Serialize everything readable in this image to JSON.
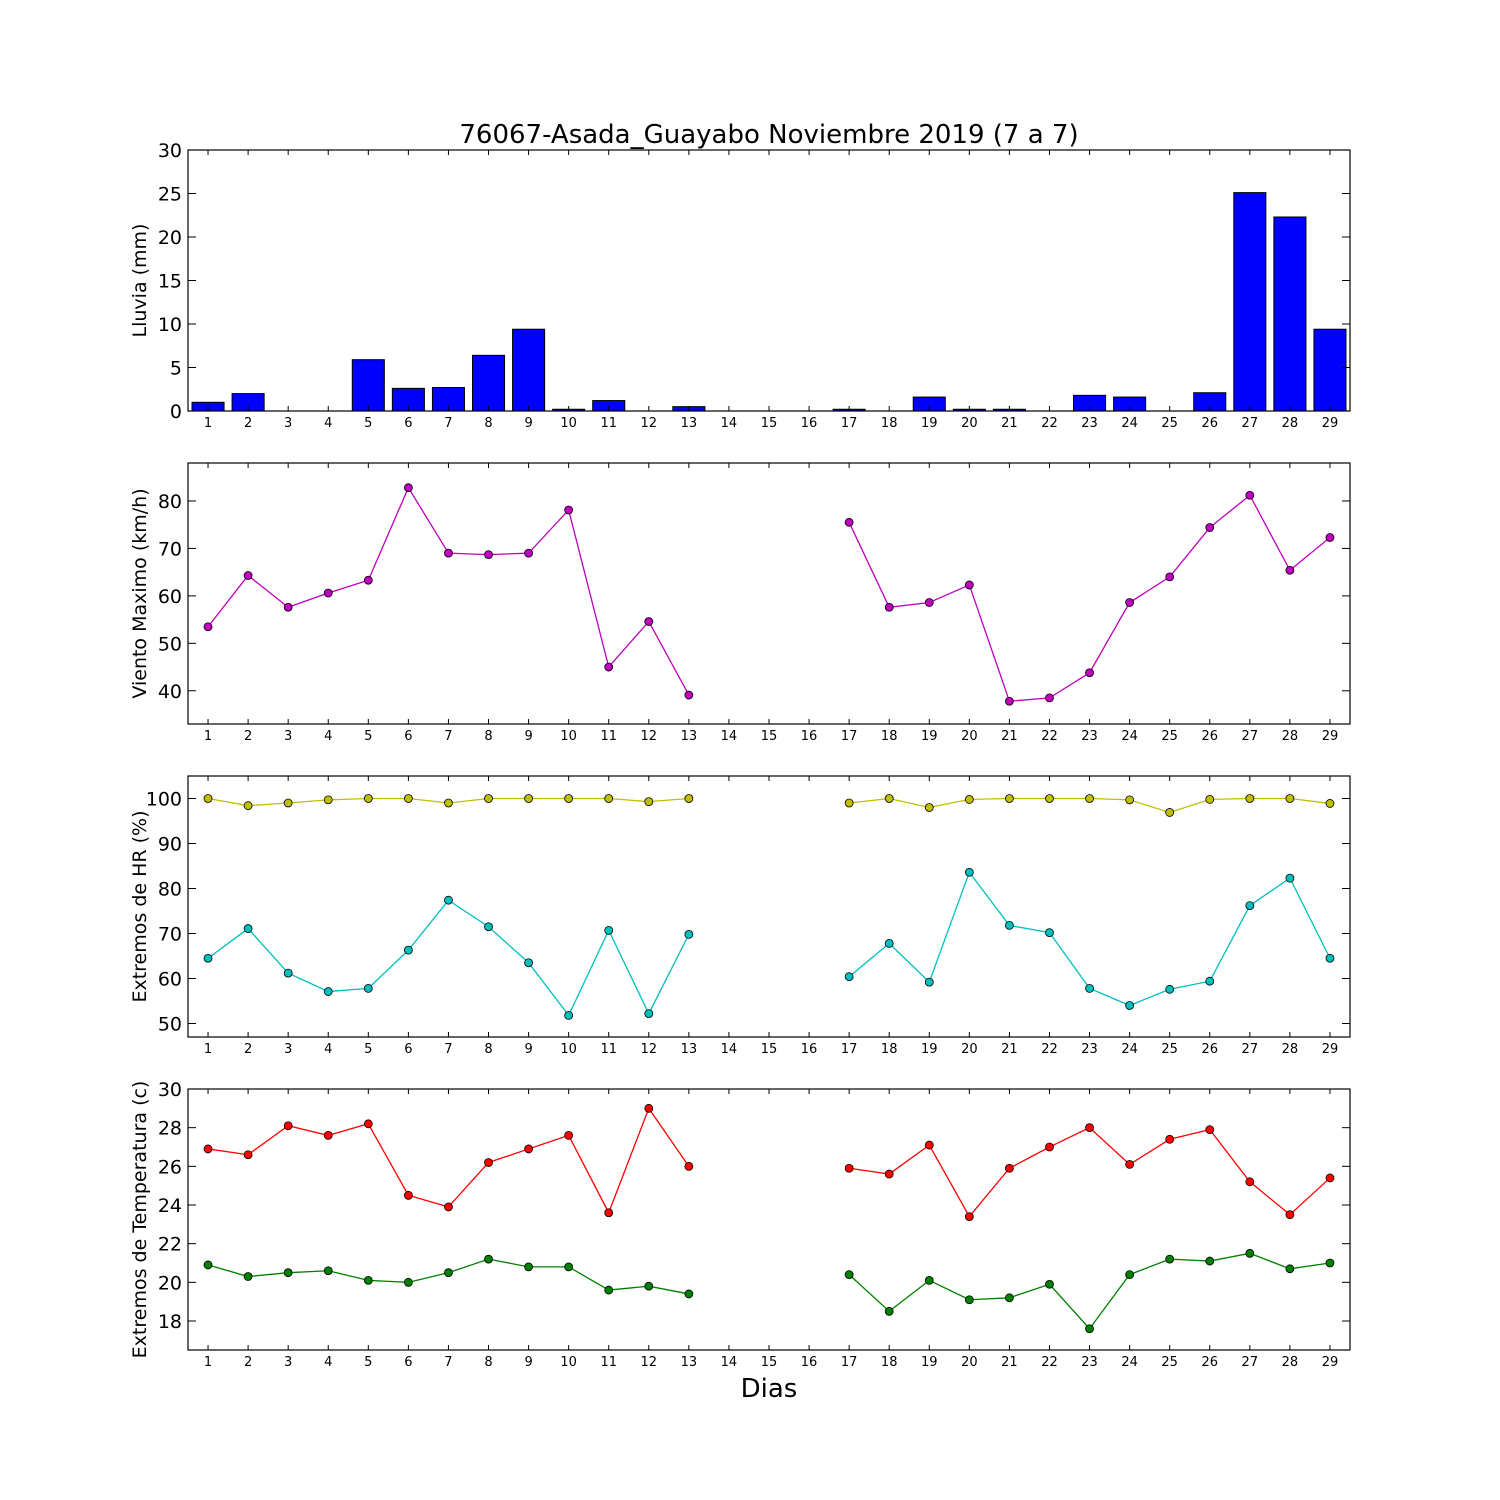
{
  "title": "76067-Asada_Guayabo Noviembre 2019  (7 a 7)",
  "xlabel": "Dias",
  "chart_data": [
    {
      "type": "bar",
      "ylabel": "Lluvia (mm)",
      "ylim": [
        0,
        30
      ],
      "yticks": [
        0,
        5,
        10,
        15,
        20,
        25,
        30
      ],
      "categories": [
        "1",
        "2",
        "3",
        "4",
        "5",
        "6",
        "7",
        "8",
        "9",
        "10",
        "11",
        "12",
        "13",
        "14",
        "15",
        "16",
        "17",
        "18",
        "19",
        "20",
        "21",
        "22",
        "23",
        "24",
        "25",
        "26",
        "27",
        "28",
        "29"
      ],
      "series": [
        {
          "color": "#0000ff",
          "values": [
            1.0,
            2.0,
            0.0,
            0.0,
            5.9,
            2.6,
            2.7,
            6.4,
            9.4,
            0.2,
            1.2,
            0.0,
            0.5,
            0.0,
            0.0,
            0.0,
            0.2,
            0.0,
            1.6,
            0.2,
            0.2,
            0.0,
            1.8,
            1.6,
            0.0,
            2.1,
            25.1,
            22.3,
            9.4
          ]
        }
      ]
    },
    {
      "type": "line",
      "ylabel": "Viento Maximo (km/h)",
      "ylim": [
        33,
        88
      ],
      "yticks": [
        40,
        50,
        60,
        70,
        80
      ],
      "categories": [
        "1",
        "2",
        "3",
        "4",
        "5",
        "6",
        "7",
        "8",
        "9",
        "10",
        "11",
        "12",
        "13",
        "14",
        "15",
        "16",
        "17",
        "18",
        "19",
        "20",
        "21",
        "22",
        "23",
        "24",
        "25",
        "26",
        "27",
        "28",
        "29"
      ],
      "series": [
        {
          "color": "#bf00bf",
          "values": [
            53.5,
            64.3,
            57.6,
            60.6,
            63.3,
            82.8,
            69.0,
            68.7,
            69.0,
            78.1,
            45.0,
            54.6,
            39.1,
            null,
            null,
            null,
            75.5,
            57.6,
            58.6,
            62.3,
            37.8,
            38.5,
            43.8,
            58.6,
            64.0,
            74.4,
            81.2,
            65.4,
            72.3
          ]
        }
      ]
    },
    {
      "type": "line",
      "ylabel": "Extremos de HR (%)",
      "ylim": [
        47,
        105
      ],
      "yticks": [
        50,
        60,
        70,
        80,
        90,
        100
      ],
      "categories": [
        "1",
        "2",
        "3",
        "4",
        "5",
        "6",
        "7",
        "8",
        "9",
        "10",
        "11",
        "12",
        "13",
        "14",
        "15",
        "16",
        "17",
        "18",
        "19",
        "20",
        "21",
        "22",
        "23",
        "24",
        "25",
        "26",
        "27",
        "28",
        "29"
      ],
      "series": [
        {
          "color": "#bfbf00",
          "values": [
            100,
            98.4,
            99.0,
            99.7,
            100,
            100,
            99.0,
            100,
            100,
            100,
            100,
            99.3,
            100,
            null,
            null,
            null,
            99.0,
            100,
            98.0,
            99.8,
            100,
            100,
            100,
            99.7,
            96.9,
            99.8,
            100,
            100,
            98.9
          ]
        },
        {
          "color": "#00bfbf",
          "values": [
            64.5,
            71.1,
            61.2,
            57.1,
            57.8,
            66.3,
            77.4,
            71.5,
            63.5,
            51.8,
            70.7,
            52.2,
            69.8,
            null,
            null,
            null,
            60.4,
            67.8,
            59.2,
            83.6,
            71.8,
            70.2,
            57.8,
            54.0,
            57.6,
            59.4,
            76.2,
            82.3,
            64.5
          ]
        }
      ]
    },
    {
      "type": "line",
      "ylabel": "Extremos de Temperatura (c)",
      "ylim": [
        16.5,
        30
      ],
      "yticks": [
        18,
        20,
        22,
        24,
        26,
        28,
        30
      ],
      "categories": [
        "1",
        "2",
        "3",
        "4",
        "5",
        "6",
        "7",
        "8",
        "9",
        "10",
        "11",
        "12",
        "13",
        "14",
        "15",
        "16",
        "17",
        "18",
        "19",
        "20",
        "21",
        "22",
        "23",
        "24",
        "25",
        "26",
        "27",
        "28",
        "29"
      ],
      "series": [
        {
          "color": "#ff0000",
          "values": [
            26.9,
            26.6,
            28.1,
            27.6,
            28.2,
            24.5,
            23.9,
            26.2,
            26.9,
            27.6,
            23.6,
            29.0,
            26.0,
            null,
            null,
            null,
            25.9,
            25.6,
            27.1,
            23.4,
            25.9,
            27.0,
            28.0,
            26.1,
            27.4,
            27.9,
            25.2,
            23.5,
            25.4
          ]
        },
        {
          "color": "#008000",
          "values": [
            20.9,
            20.3,
            20.5,
            20.6,
            20.1,
            20.0,
            20.5,
            21.2,
            20.8,
            20.8,
            19.6,
            19.8,
            19.4,
            null,
            null,
            null,
            20.4,
            18.5,
            20.1,
            19.1,
            19.2,
            19.9,
            17.6,
            20.4,
            21.2,
            21.1,
            21.5,
            20.7,
            21.0
          ]
        }
      ]
    }
  ]
}
